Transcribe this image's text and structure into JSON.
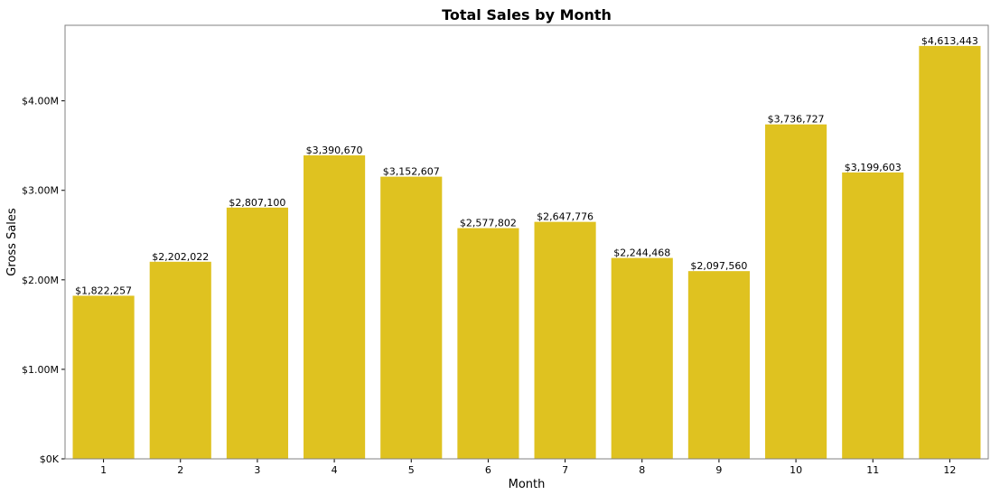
{
  "chart_data": {
    "type": "bar",
    "title": "Total Sales by Month",
    "xlabel": "Month",
    "ylabel": "Gross Sales",
    "categories": [
      "1",
      "2",
      "3",
      "4",
      "5",
      "6",
      "7",
      "8",
      "9",
      "10",
      "11",
      "12"
    ],
    "values": [
      1822257,
      2202022,
      2807100,
      3390670,
      3152607,
      2577802,
      2647776,
      2244468,
      2097560,
      3736727,
      3199603,
      4613443
    ],
    "data_labels": [
      "$1,822,257",
      "$2,202,022",
      "$2,807,100",
      "$3,390,670",
      "$3,152,607",
      "$2,577,802",
      "$2,647,776",
      "$2,244,468",
      "$2,097,560",
      "$3,736,727",
      "$3,199,603",
      "$4,613,443"
    ],
    "ylim": [
      0,
      4844115
    ],
    "yticks": [
      0,
      1000000,
      2000000,
      3000000,
      4000000
    ],
    "ytick_labels": [
      "$0K",
      "$1.00M",
      "$2.00M",
      "$3.00M",
      "$4.00M"
    ],
    "grid": false,
    "bar_color": "#dfc220",
    "frame_color": "#808080"
  }
}
